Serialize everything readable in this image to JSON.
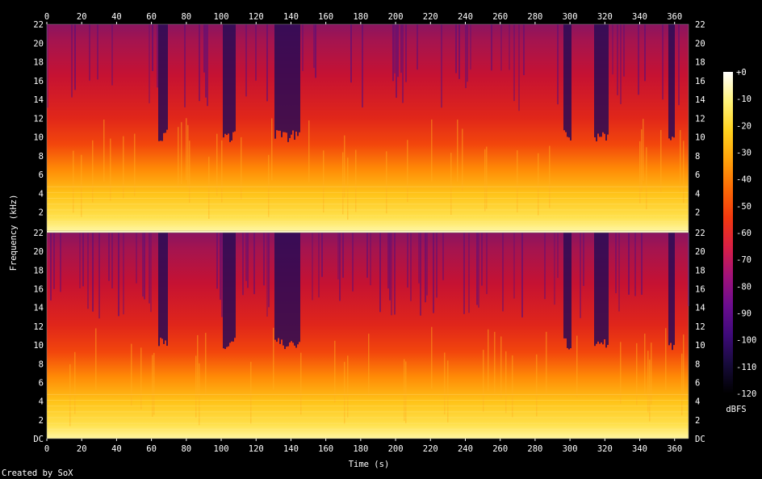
{
  "chart_data": {
    "type": "heatmap",
    "subtype": "spectrogram",
    "channels": 2,
    "xlabel": "Time (s)",
    "ylabel": "Frequency (kHz)",
    "xlim": [
      0,
      368
    ],
    "ylim": [
      0,
      22
    ],
    "x_ticks": [
      "0",
      "20",
      "40",
      "60",
      "80",
      "100",
      "120",
      "140",
      "160",
      "180",
      "200",
      "220",
      "240",
      "260",
      "280",
      "300",
      "320",
      "340",
      "360"
    ],
    "y_ticks": [
      "DC",
      "2",
      "4",
      "6",
      "8",
      "10",
      "12",
      "14",
      "16",
      "18",
      "20",
      "22"
    ],
    "colorbar": {
      "label": "dBFS",
      "range": [
        -120,
        0
      ],
      "ticks": [
        "+0",
        "-10",
        "-20",
        "-30",
        "-40",
        "-50",
        "-60",
        "-70",
        "-80",
        "-90",
        "-100",
        "-110",
        "-120"
      ],
      "stops": [
        "#000000",
        "#170b3b",
        "#3e0a7a",
        "#6b0d8f",
        "#a0127a",
        "#d81f45",
        "#f2380f",
        "#fb6a05",
        "#ffa20a",
        "#ffd21e",
        "#fff37a",
        "#ffffff"
      ]
    },
    "quiet_regions_s": [
      [
        63,
        69
      ],
      [
        100,
        108
      ],
      [
        130,
        145
      ],
      [
        296,
        300
      ],
      [
        313,
        322
      ],
      [
        356,
        360
      ]
    ],
    "credit": "Created by SoX"
  }
}
